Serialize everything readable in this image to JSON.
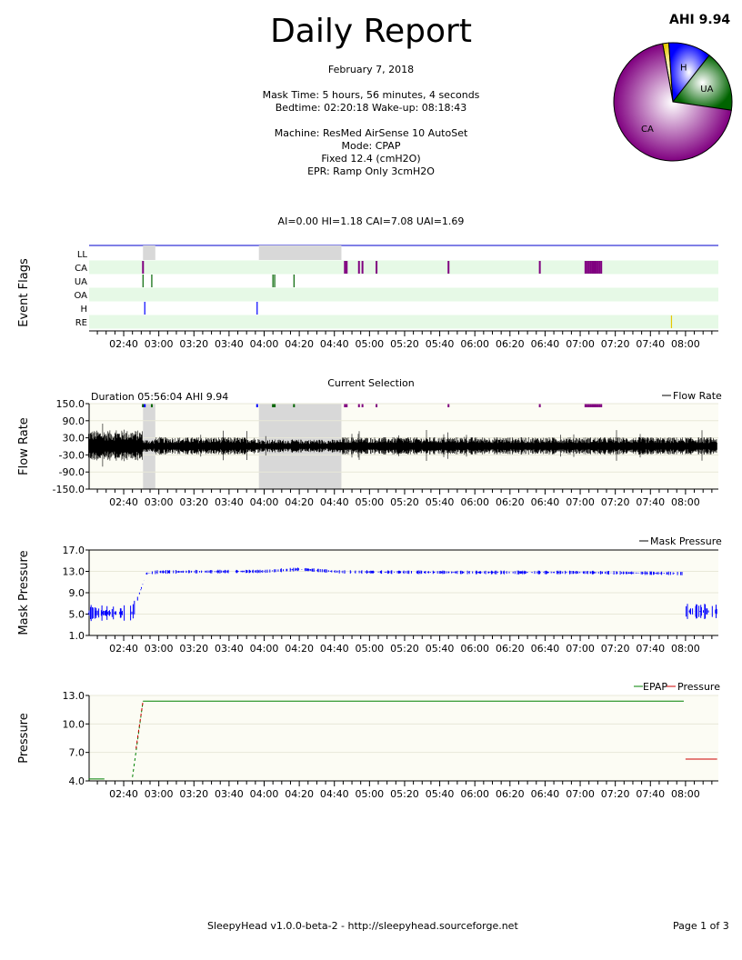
{
  "report": {
    "title": "Daily Report",
    "date": "February 7, 2018",
    "mask_time": "Mask Time: 5 hours, 56 minutes, 4 seconds",
    "bedtime": "Bedtime: 02:20:18 Wake-up: 08:18:43",
    "machine": "Machine: ResMed AirSense 10 AutoSet",
    "mode": "Mode: CPAP",
    "fixed": "Fixed 12.4 (cmH2O)",
    "epr": "EPR: Ramp Only 3cmH2O",
    "indices": "AI=0.00 HI=1.18 CAI=7.08 UAI=1.69",
    "ahi": "AHI 9.94"
  },
  "footer": {
    "left": "SleepyHead v1.0.0-beta-2 - http://sleepyhead.sourceforge.net",
    "right": "Page 1 of 3"
  },
  "colors": {
    "ca": "#800080",
    "h": "#0000ff",
    "ua": "#006400",
    "re": "#e6c800",
    "flow": "#000000",
    "mask": "#0000ff",
    "epap": "#008000",
    "pressure": "#cc0000",
    "band": "#e6f9e6",
    "plotbg": "#fcfcf4",
    "shade": "#d8d8d8"
  },
  "time_ticks": [
    "02:40",
    "03:00",
    "03:20",
    "03:40",
    "04:00",
    "04:20",
    "04:40",
    "05:00",
    "05:20",
    "05:40",
    "06:00",
    "06:20",
    "06:40",
    "07:00",
    "07:20",
    "07:40",
    "08:00"
  ],
  "chart_data": [
    {
      "type": "pie",
      "title": "AHI 9.94",
      "labels": [
        "CA",
        "H",
        "UA",
        "RE"
      ],
      "values": [
        7.08,
        1.18,
        1.69,
        0.17
      ]
    },
    {
      "type": "scatter",
      "name": "event-flags",
      "ylabel": "Event Flags",
      "rows": [
        "LL",
        "CA",
        "UA",
        "OA",
        "H",
        "RE"
      ],
      "ll_spans": [
        [
          "02:51",
          "02:58"
        ],
        [
          "03:57",
          "04:44"
        ]
      ],
      "events": {
        "CA": [
          "02:51",
          "04:46",
          "04:47",
          "04:54",
          "04:56",
          "05:04",
          "05:45",
          "06:37",
          "07:03",
          "07:04",
          "07:05",
          "07:06",
          "07:07",
          "07:08",
          "07:09",
          "07:10",
          "07:11",
          "07:12"
        ],
        "UA": [
          "02:51",
          "02:56",
          "04:05",
          "04:06",
          "04:17"
        ],
        "OA": [],
        "H": [
          "02:52",
          "03:56"
        ],
        "RE": [
          "07:52"
        ]
      }
    },
    {
      "type": "line",
      "name": "flow-rate",
      "title": "Current Selection",
      "subtitle": "Duration 05:56:04 AHI 9.94",
      "ylabel": "Flow Rate",
      "series": [
        {
          "name": "Flow Rate",
          "segments": [
            {
              "from": "02:20",
              "to": "02:51",
              "amp": 28
            },
            {
              "from": "02:51",
              "to": "02:58",
              "amp": 12
            },
            {
              "from": "02:58",
              "to": "03:57",
              "amp": 16
            },
            {
              "from": "03:57",
              "to": "04:44",
              "amp": 12
            },
            {
              "from": "04:44",
              "to": "08:18",
              "amp": 16
            }
          ]
        }
      ],
      "yticks": [
        "150.0",
        "90.0",
        "30.0",
        "-30.0",
        "-90.0",
        "-150.0"
      ],
      "ylim": [
        -150,
        150
      ]
    },
    {
      "type": "line",
      "name": "mask-pressure",
      "ylabel": "Mask Pressure",
      "series": [
        {
          "name": "Mask Pressure",
          "points": [
            [
              "02:20",
              5.2
            ],
            [
              "02:45",
              5.2
            ],
            [
              "02:53",
              12.6
            ],
            [
              "03:00",
              12.9
            ],
            [
              "04:00",
              13.0
            ],
            [
              "04:20",
              13.4
            ],
            [
              "04:44",
              12.9
            ],
            [
              "06:00",
              12.8
            ],
            [
              "07:00",
              12.8
            ],
            [
              "07:59",
              12.6
            ],
            [
              "08:00",
              5.5
            ],
            [
              "08:18",
              5.5
            ]
          ]
        }
      ],
      "yticks": [
        "17.0",
        "13.0",
        "9.0",
        "5.0",
        "1.0"
      ],
      "ylim": [
        1,
        17
      ]
    },
    {
      "type": "line",
      "name": "pressure",
      "ylabel": "Pressure",
      "series": [
        {
          "name": "EPAP",
          "points": [
            [
              "02:20",
              4.2
            ],
            [
              "02:29",
              4.2
            ],
            [
              "02:45",
              4.4
            ],
            [
              "02:51",
              12.4
            ],
            [
              "07:59",
              12.4
            ]
          ]
        },
        {
          "name": "Pressure",
          "points": [
            [
              "02:47",
              7.4
            ],
            [
              "02:51",
              12.4
            ],
            [
              "08:00",
              6.3
            ],
            [
              "08:18",
              6.3
            ]
          ]
        }
      ],
      "yticks": [
        "13.0",
        "10.0",
        "7.0",
        "4.0"
      ],
      "ylim": [
        4,
        13
      ]
    }
  ]
}
